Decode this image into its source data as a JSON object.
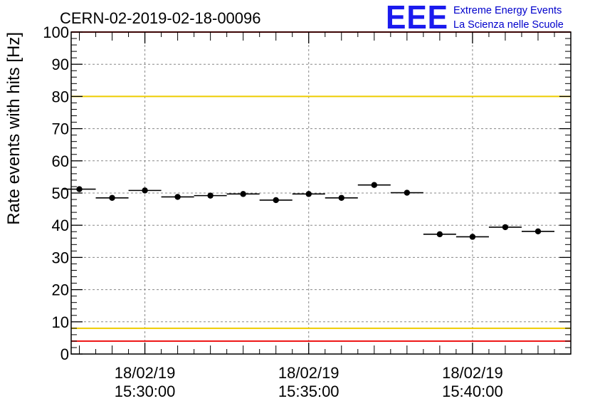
{
  "header": {
    "run_title": "CERN-02-2019-02-18-00096",
    "logo_text": "EEE",
    "logo_line1": "Extreme Energy Events",
    "logo_line2": "La Scienza nelle Scuole"
  },
  "colors": {
    "logo": "#1a1aee",
    "logo_text": "#0000cc",
    "limit_red": "#ee1111",
    "limit_yellow": "#eecc00",
    "marker": "#000000",
    "grid": "#888888"
  },
  "chart_data": {
    "type": "scatter",
    "title": "CERN-02-2019-02-18-00096",
    "ylabel": "Rate events with hits [Hz]",
    "xlabel": "",
    "ylim": [
      0,
      100
    ],
    "xlim": [
      "2019-02-18 15:27:45",
      "2019-02-18 15:43:00"
    ],
    "y_ticks": [
      "0",
      "10",
      "20",
      "30",
      "40",
      "50",
      "60",
      "70",
      "80",
      "90",
      "100"
    ],
    "x_ticks": [
      {
        "date": "18/02/19",
        "time": "15:30:00"
      },
      {
        "date": "18/02/19",
        "time": "15:35:00"
      },
      {
        "date": "18/02/19",
        "time": "15:40:00"
      }
    ],
    "grid": true,
    "bin_width_seconds": 60,
    "points": [
      {
        "time": "2019-02-18 15:28:00",
        "rate": 51.2
      },
      {
        "time": "2019-02-18 15:29:00",
        "rate": 48.5
      },
      {
        "time": "2019-02-18 15:30:00",
        "rate": 50.8
      },
      {
        "time": "2019-02-18 15:31:00",
        "rate": 48.8
      },
      {
        "time": "2019-02-18 15:32:00",
        "rate": 49.2
      },
      {
        "time": "2019-02-18 15:33:00",
        "rate": 49.7
      },
      {
        "time": "2019-02-18 15:34:00",
        "rate": 47.8
      },
      {
        "time": "2019-02-18 15:35:00",
        "rate": 49.7
      },
      {
        "time": "2019-02-18 15:36:00",
        "rate": 48.5
      },
      {
        "time": "2019-02-18 15:37:00",
        "rate": 52.5
      },
      {
        "time": "2019-02-18 15:38:00",
        "rate": 50.1
      },
      {
        "time": "2019-02-18 15:39:00",
        "rate": 37.2
      },
      {
        "time": "2019-02-18 15:40:00",
        "rate": 36.4
      },
      {
        "time": "2019-02-18 15:41:00",
        "rate": 39.4
      },
      {
        "time": "2019-02-18 15:42:00",
        "rate": 38.1
      }
    ],
    "reference_lines": [
      {
        "value": 100,
        "color": "red"
      },
      {
        "value": 80,
        "color": "yellow"
      },
      {
        "value": 8,
        "color": "yellow"
      },
      {
        "value": 4,
        "color": "red"
      }
    ]
  }
}
